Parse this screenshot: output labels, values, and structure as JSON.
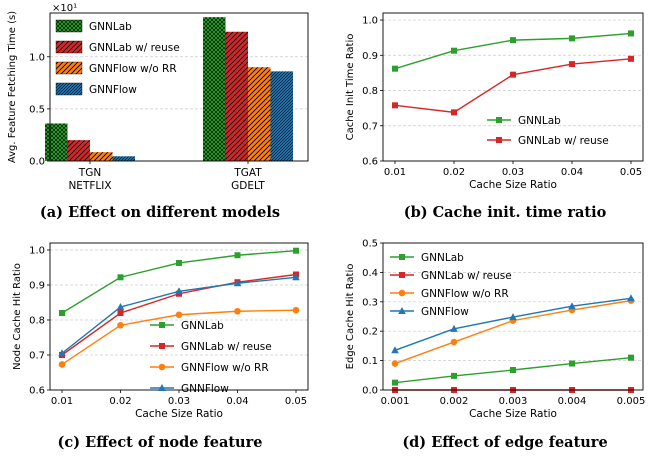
{
  "captions": [
    "(a) Effect on different models",
    "(b) Cache init. time ratio",
    "(c) Effect of node feature",
    "(d) Effect of edge feature"
  ],
  "colors": {
    "gnnlab": "#2ca02c",
    "gnnlab_reuse": "#d62728",
    "gnnflow_worr": "#ff7f0e",
    "gnnflow": "#1f77b4"
  },
  "chart_data": [
    {
      "type": "bar",
      "ylabel": "Avg. Feature Fetching Time (s)",
      "y_multiplier": "×10¹",
      "ylim": [
        0,
        1.42
      ],
      "yticks": [
        "0.0",
        "0.5",
        "1.0"
      ],
      "categories": [
        "TGN\nNETFLIX",
        "TGAT\nGDELT"
      ],
      "legend_position": "top-left",
      "series": [
        {
          "name": "GNNLab",
          "values": [
            0.36,
            1.38
          ]
        },
        {
          "name": "GNNLab w/ reuse",
          "values": [
            0.2,
            1.24
          ]
        },
        {
          "name": "GNNFlow w/o RR",
          "values": [
            0.085,
            0.9
          ]
        },
        {
          "name": "GNNFlow",
          "values": [
            0.045,
            0.86
          ]
        }
      ]
    },
    {
      "type": "line",
      "xlabel": "Cache Size Ratio",
      "ylabel": "Cache Init Time Ratio",
      "x": [
        "0.01",
        "0.02",
        "0.03",
        "0.04",
        "0.05"
      ],
      "ylim": [
        0.6,
        1.02
      ],
      "yticks": [
        "0.6",
        "0.7",
        "0.8",
        "0.9",
        "1.0"
      ],
      "legend_position": "lower-right",
      "series": [
        {
          "name": "GNNLab",
          "values": [
            0.862,
            0.913,
            0.943,
            0.948,
            0.962
          ]
        },
        {
          "name": "GNNLab w/ reuse",
          "values": [
            0.758,
            0.738,
            0.845,
            0.875,
            0.89
          ]
        }
      ]
    },
    {
      "type": "line",
      "xlabel": "Cache Size Ratio",
      "ylabel": "Node Cache Hit Ratio",
      "x": [
        "0.01",
        "0.02",
        "0.03",
        "0.04",
        "0.05"
      ],
      "ylim": [
        0.6,
        1.02
      ],
      "yticks": [
        "0.6",
        "0.7",
        "0.8",
        "0.9",
        "1.0"
      ],
      "legend_position": "lower-right",
      "series": [
        {
          "name": "GNNLab",
          "values": [
            0.82,
            0.922,
            0.963,
            0.985,
            0.998
          ]
        },
        {
          "name": "GNNLab w/ reuse",
          "values": [
            0.7,
            0.82,
            0.875,
            0.908,
            0.93
          ]
        },
        {
          "name": "GNNFlow w/o RR",
          "values": [
            0.673,
            0.785,
            0.815,
            0.825,
            0.828
          ]
        },
        {
          "name": "GNNFlow",
          "values": [
            0.705,
            0.837,
            0.882,
            0.905,
            0.922
          ]
        }
      ]
    },
    {
      "type": "line",
      "xlabel": "Cache Size Ratio",
      "ylabel": "Edge Cache Hit Ratio",
      "x": [
        "0.001",
        "0.002",
        "0.003",
        "0.004",
        "0.005"
      ],
      "ylim": [
        0,
        0.5
      ],
      "yticks": [
        "0.0",
        "0.1",
        "0.2",
        "0.3",
        "0.4",
        "0.5"
      ],
      "legend_position": "top-left",
      "series": [
        {
          "name": "GNNLab",
          "values": [
            0.025,
            0.048,
            0.068,
            0.09,
            0.11
          ]
        },
        {
          "name": "GNNLab w/ reuse",
          "values": [
            0.0,
            0.0,
            0.0,
            0.0,
            0.0
          ]
        },
        {
          "name": "GNNFlow w/o RR",
          "values": [
            0.09,
            0.163,
            0.236,
            0.272,
            0.304
          ]
        },
        {
          "name": "GNNFlow",
          "values": [
            0.135,
            0.208,
            0.248,
            0.285,
            0.312
          ]
        }
      ]
    }
  ]
}
